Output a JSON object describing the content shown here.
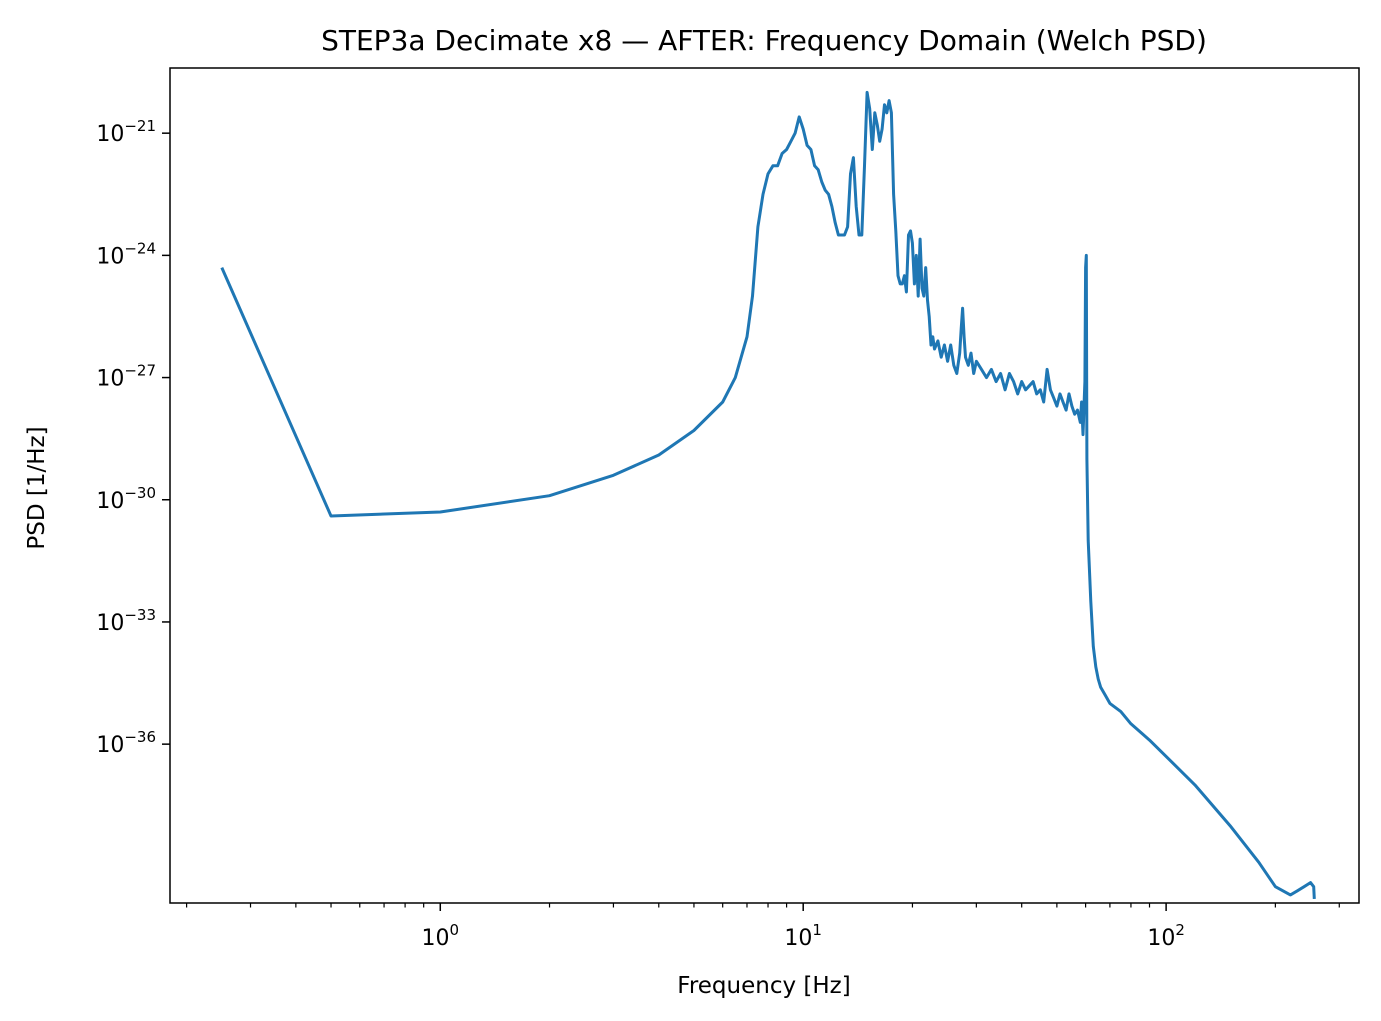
{
  "chart_data": {
    "type": "line",
    "title": "STEP3a Decimate x8 — AFTER: Frequency Domain (Welch PSD)",
    "xlabel": "Frequency [Hz]",
    "ylabel": "PSD [1/Hz]",
    "x_scale": "log",
    "y_scale": "log",
    "xlim": [
      0.18,
      340
    ],
    "ylim_exponent": [
      -39.9,
      -19.4
    ],
    "grid": false,
    "legend": "none",
    "x_major_ticks": [
      {
        "base": "10",
        "exp": "0",
        "value": 1
      },
      {
        "base": "10",
        "exp": "1",
        "value": 10
      },
      {
        "base": "10",
        "exp": "2",
        "value": 100
      }
    ],
    "y_major_ticks": [
      {
        "base": "10",
        "exp": "−21",
        "exponent": -21
      },
      {
        "base": "10",
        "exp": "−24",
        "exponent": -24
      },
      {
        "base": "10",
        "exp": "−27",
        "exponent": -27
      },
      {
        "base": "10",
        "exp": "−30",
        "exponent": -30
      },
      {
        "base": "10",
        "exp": "−33",
        "exponent": -33
      },
      {
        "base": "10",
        "exp": "−36",
        "exponent": -36
      }
    ],
    "series": [
      {
        "color": "#1f77b4",
        "x": [
          0.25,
          0.5,
          1,
          2,
          3,
          4,
          5,
          6,
          6.5,
          7,
          7.25,
          7.5,
          7.75,
          8,
          8.25,
          8.5,
          8.75,
          9,
          9.25,
          9.5,
          9.75,
          10,
          10.25,
          10.5,
          10.75,
          11,
          11.25,
          11.5,
          11.75,
          12,
          12.25,
          12.5,
          12.75,
          13,
          13.25,
          13.5,
          13.75,
          14,
          14.25,
          14.5,
          14.75,
          15,
          15.25,
          15.5,
          15.75,
          16,
          16.25,
          16.5,
          16.75,
          17,
          17.25,
          17.5,
          17.75,
          18,
          18.25,
          18.5,
          18.75,
          19,
          19.25,
          19.5,
          19.75,
          20,
          20.25,
          20.5,
          20.75,
          21,
          21.25,
          21.5,
          21.75,
          22,
          22.25,
          22.5,
          22.75,
          23,
          23.5,
          24,
          24.5,
          25,
          25.5,
          26,
          26.5,
          27,
          27.25,
          27.5,
          27.75,
          28,
          28.5,
          29,
          29.5,
          30,
          31,
          32,
          33,
          34,
          35,
          36,
          37,
          38,
          39,
          40,
          41,
          42,
          43,
          44,
          45,
          46,
          47,
          48,
          49,
          50,
          51,
          52,
          53,
          54,
          55,
          56,
          57,
          58,
          58.5,
          59,
          59.25,
          59.5,
          59.75,
          60,
          60.25,
          60.5,
          61,
          62,
          63,
          64,
          65,
          66,
          68,
          70,
          75,
          80,
          90,
          100,
          120,
          150,
          180,
          200,
          220,
          230,
          240,
          250,
          255,
          256
        ],
        "y_exponent": [
          -24.3,
          -30.4,
          -30.3,
          -29.9,
          -29.4,
          -28.9,
          -28.3,
          -27.6,
          -27.0,
          -26.0,
          -25.0,
          -23.3,
          -22.5,
          -22.0,
          -21.8,
          -21.8,
          -21.5,
          -21.4,
          -21.2,
          -21.0,
          -20.6,
          -20.9,
          -21.3,
          -21.4,
          -21.8,
          -21.9,
          -22.2,
          -22.4,
          -22.5,
          -22.8,
          -23.2,
          -23.5,
          -23.5,
          -23.5,
          -23.3,
          -22.0,
          -21.6,
          -22.8,
          -23.5,
          -23.5,
          -21.8,
          -20.0,
          -20.4,
          -21.4,
          -20.5,
          -20.8,
          -21.2,
          -20.9,
          -20.3,
          -20.5,
          -20.2,
          -20.5,
          -22.5,
          -23.4,
          -24.5,
          -24.7,
          -24.7,
          -24.5,
          -24.9,
          -23.5,
          -23.4,
          -23.7,
          -24.7,
          -24.0,
          -25.0,
          -23.6,
          -24.8,
          -25.0,
          -24.3,
          -25.1,
          -25.5,
          -26.2,
          -26.0,
          -26.3,
          -26.1,
          -26.5,
          -26.2,
          -26.6,
          -26.2,
          -26.7,
          -26.9,
          -26.4,
          -25.8,
          -25.3,
          -26.0,
          -26.5,
          -26.7,
          -26.4,
          -26.9,
          -26.6,
          -26.8,
          -27.0,
          -26.8,
          -27.1,
          -26.9,
          -27.3,
          -26.9,
          -27.1,
          -27.4,
          -27.1,
          -27.3,
          -27.2,
          -27.1,
          -27.4,
          -27.3,
          -27.6,
          -26.8,
          -27.3,
          -27.5,
          -27.7,
          -27.4,
          -27.6,
          -27.8,
          -27.4,
          -27.7,
          -27.9,
          -27.8,
          -28.1,
          -27.6,
          -28.4,
          -28.0,
          -27.5,
          -27.1,
          -24.3,
          -24.0,
          -29.0,
          -31.0,
          -32.5,
          -33.6,
          -34.1,
          -34.4,
          -34.6,
          -34.8,
          -35.0,
          -35.2,
          -35.5,
          -35.9,
          -36.3,
          -37.0,
          -38.0,
          -38.9,
          -39.5,
          -39.7,
          -39.6,
          -39.5,
          -39.4,
          -39.5,
          -39.8
        ]
      }
    ]
  }
}
